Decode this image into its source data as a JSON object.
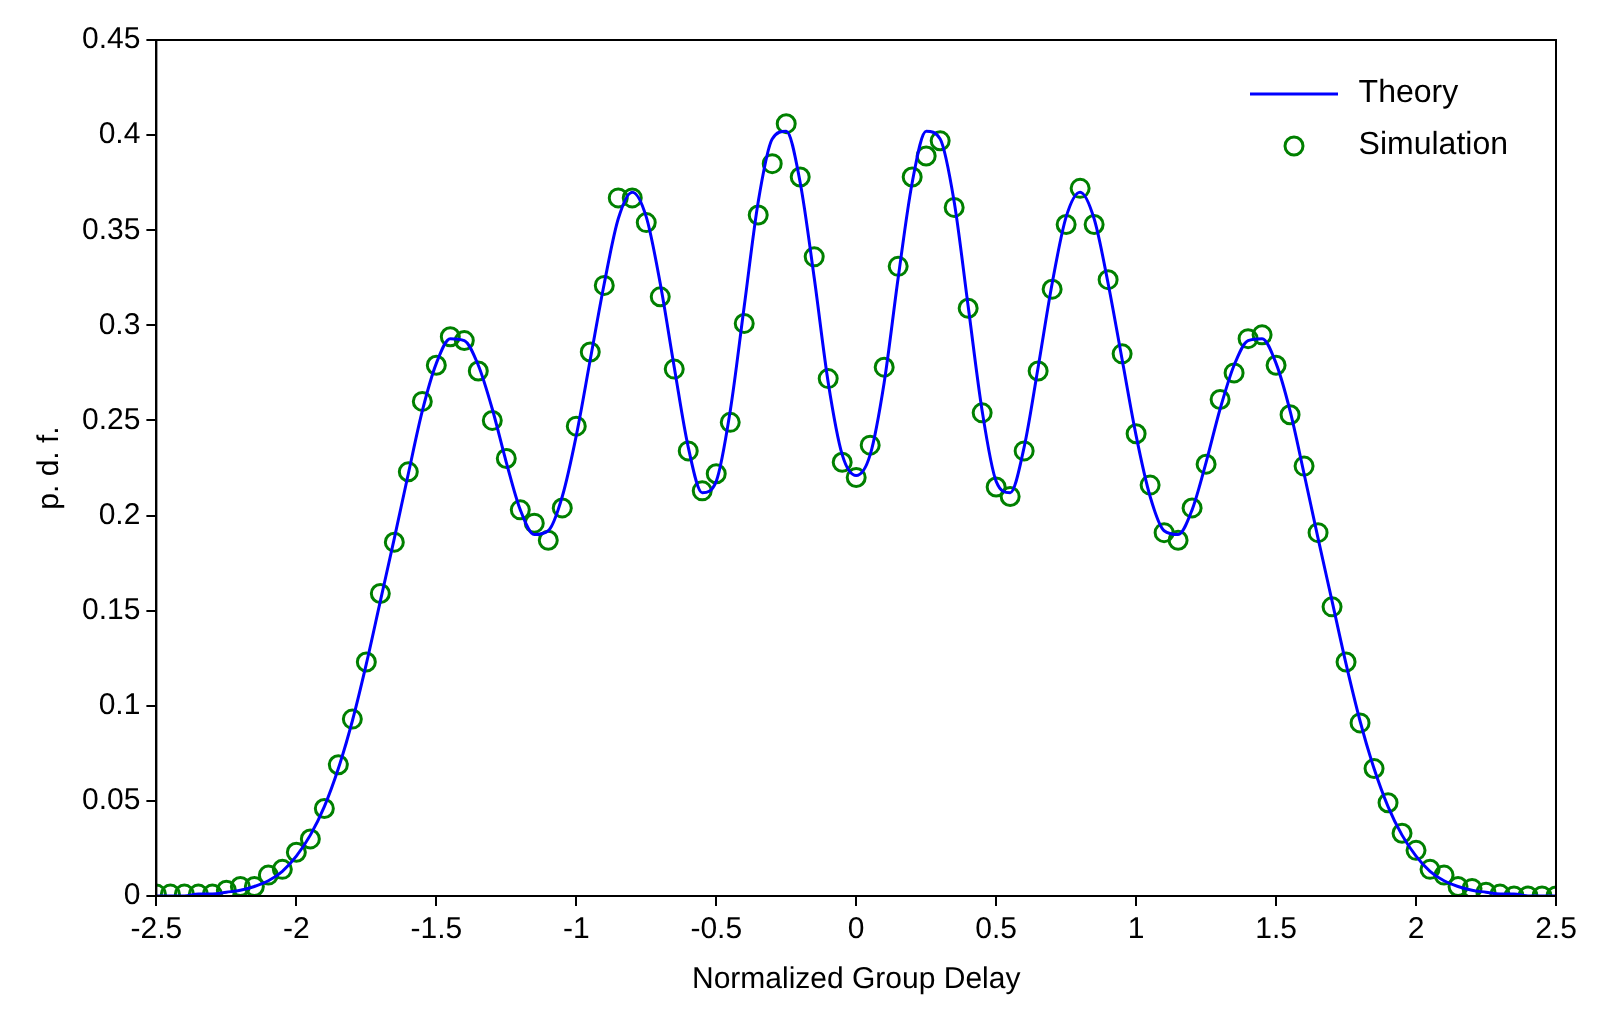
{
  "chart_data": {
    "type": "line",
    "xlabel": "Normalized Group Delay",
    "ylabel": "p. d. f.",
    "xlim": [
      -2.5,
      2.5
    ],
    "xticks": [
      -2.5,
      -2,
      -1.5,
      -1,
      -0.5,
      0,
      0.5,
      1,
      1.5,
      2,
      2.5
    ],
    "ylim": [
      0,
      0.45
    ],
    "yticks": [
      0,
      0.05,
      0.1,
      0.15,
      0.2,
      0.25,
      0.3,
      0.35,
      0.4,
      0.45
    ],
    "grid": false,
    "legend": "top right",
    "series": [
      {
        "name": "Theory",
        "type": "line",
        "color": "#0000ff",
        "marker": "none",
        "line_style": "solid",
        "x": [
          -2.5,
          -2.45,
          -2.4,
          -2.35,
          -2.3,
          -2.25,
          -2.2,
          -2.15,
          -2.1,
          -2.05,
          -2,
          -1.95,
          -1.9,
          -1.85,
          -1.8,
          -1.75,
          -1.7,
          -1.65,
          -1.6,
          -1.55,
          -1.5,
          -1.45,
          -1.4,
          -1.35,
          -1.3,
          -1.25,
          -1.2,
          -1.15,
          -1.1,
          -1.05,
          -1,
          -0.95,
          -0.9,
          -0.85,
          -0.8,
          -0.75,
          -0.7,
          -0.65,
          -0.6,
          -0.55,
          -0.5,
          -0.45,
          -0.4,
          -0.35,
          -0.3,
          -0.25,
          -0.2,
          -0.15,
          -0.1,
          -0.05,
          0,
          0.05,
          0.1,
          0.15,
          0.2,
          0.25,
          0.3,
          0.35,
          0.4,
          0.45,
          0.5,
          0.55,
          0.6,
          0.65,
          0.7,
          0.75,
          0.8,
          0.85,
          0.9,
          0.95,
          1,
          1.05,
          1.1,
          1.15,
          1.2,
          1.25,
          1.3,
          1.35,
          1.4,
          1.45,
          1.5,
          1.55,
          1.6,
          1.65,
          1.7,
          1.75,
          1.8,
          1.85,
          1.9,
          1.95,
          2,
          2.05,
          2.1,
          2.15,
          2.2,
          2.25,
          2.3,
          2.35,
          2.4,
          2.45,
          2.5
        ],
        "values": [
          0,
          0,
          0,
          0.001,
          0.001,
          0.002,
          0.003,
          0.005,
          0.008,
          0.013,
          0.021,
          0.032,
          0.047,
          0.067,
          0.092,
          0.122,
          0.155,
          0.188,
          0.222,
          0.255,
          0.28,
          0.293,
          0.292,
          0.279,
          0.256,
          0.228,
          0.203,
          0.19,
          0.192,
          0.21,
          0.242,
          0.282,
          0.322,
          0.356,
          0.37,
          0.357,
          0.322,
          0.278,
          0.236,
          0.212,
          0.218,
          0.255,
          0.31,
          0.365,
          0.398,
          0.402,
          0.375,
          0.325,
          0.27,
          0.232,
          0.221,
          0.232,
          0.27,
          0.325,
          0.375,
          0.402,
          0.398,
          0.365,
          0.31,
          0.255,
          0.218,
          0.212,
          0.236,
          0.278,
          0.322,
          0.357,
          0.37,
          0.356,
          0.322,
          0.282,
          0.242,
          0.21,
          0.192,
          0.19,
          0.203,
          0.228,
          0.256,
          0.279,
          0.292,
          0.293,
          0.28,
          0.255,
          0.222,
          0.188,
          0.155,
          0.122,
          0.092,
          0.067,
          0.047,
          0.032,
          0.021,
          0.013,
          0.008,
          0.005,
          0.003,
          0.002,
          0.001,
          0.001,
          0,
          0,
          0
        ]
      },
      {
        "name": "Simulation",
        "type": "scatter",
        "color": "#008000",
        "marker": "circle",
        "x": [
          -2.5,
          -2.45,
          -2.4,
          -2.35,
          -2.3,
          -2.25,
          -2.2,
          -2.15,
          -2.1,
          -2.05,
          -2,
          -1.95,
          -1.9,
          -1.85,
          -1.8,
          -1.75,
          -1.7,
          -1.65,
          -1.6,
          -1.55,
          -1.5,
          -1.45,
          -1.4,
          -1.35,
          -1.3,
          -1.25,
          -1.2,
          -1.15,
          -1.1,
          -1.05,
          -1,
          -0.95,
          -0.9,
          -0.85,
          -0.8,
          -0.75,
          -0.7,
          -0.65,
          -0.6,
          -0.55,
          -0.5,
          -0.45,
          -0.4,
          -0.35,
          -0.3,
          -0.25,
          -0.2,
          -0.15,
          -0.1,
          -0.05,
          0,
          0.05,
          0.1,
          0.15,
          0.2,
          0.25,
          0.3,
          0.35,
          0.4,
          0.45,
          0.5,
          0.55,
          0.6,
          0.65,
          0.7,
          0.75,
          0.8,
          0.85,
          0.9,
          0.95,
          1,
          1.05,
          1.1,
          1.15,
          1.2,
          1.25,
          1.3,
          1.35,
          1.4,
          1.45,
          1.5,
          1.55,
          1.6,
          1.65,
          1.7,
          1.75,
          1.8,
          1.85,
          1.9,
          1.95,
          2,
          2.05,
          2.1,
          2.15,
          2.2,
          2.25,
          2.3,
          2.35,
          2.4,
          2.45,
          2.5
        ],
        "values": [
          0.001,
          0.001,
          0.001,
          0.001,
          0.001,
          0.003,
          0.005,
          0.005,
          0.011,
          0.014,
          0.023,
          0.03,
          0.046,
          0.069,
          0.093,
          0.123,
          0.159,
          0.186,
          0.223,
          0.26,
          0.279,
          0.294,
          0.292,
          0.276,
          0.25,
          0.23,
          0.203,
          0.196,
          0.187,
          0.204,
          0.247,
          0.286,
          0.321,
          0.367,
          0.367,
          0.354,
          0.315,
          0.277,
          0.234,
          0.213,
          0.222,
          0.249,
          0.301,
          0.358,
          0.385,
          0.406,
          0.378,
          0.336,
          0.272,
          0.228,
          0.22,
          0.237,
          0.278,
          0.331,
          0.378,
          0.389,
          0.397,
          0.362,
          0.309,
          0.254,
          0.215,
          0.21,
          0.234,
          0.276,
          0.319,
          0.353,
          0.372,
          0.353,
          0.324,
          0.285,
          0.243,
          0.216,
          0.191,
          0.187,
          0.204,
          0.227,
          0.261,
          0.275,
          0.293,
          0.295,
          0.279,
          0.253,
          0.226,
          0.191,
          0.152,
          0.123,
          0.091,
          0.067,
          0.049,
          0.033,
          0.024,
          0.014,
          0.011,
          0.005,
          0.004,
          0.002,
          0.001,
          0,
          0,
          0,
          0
        ]
      }
    ]
  }
}
